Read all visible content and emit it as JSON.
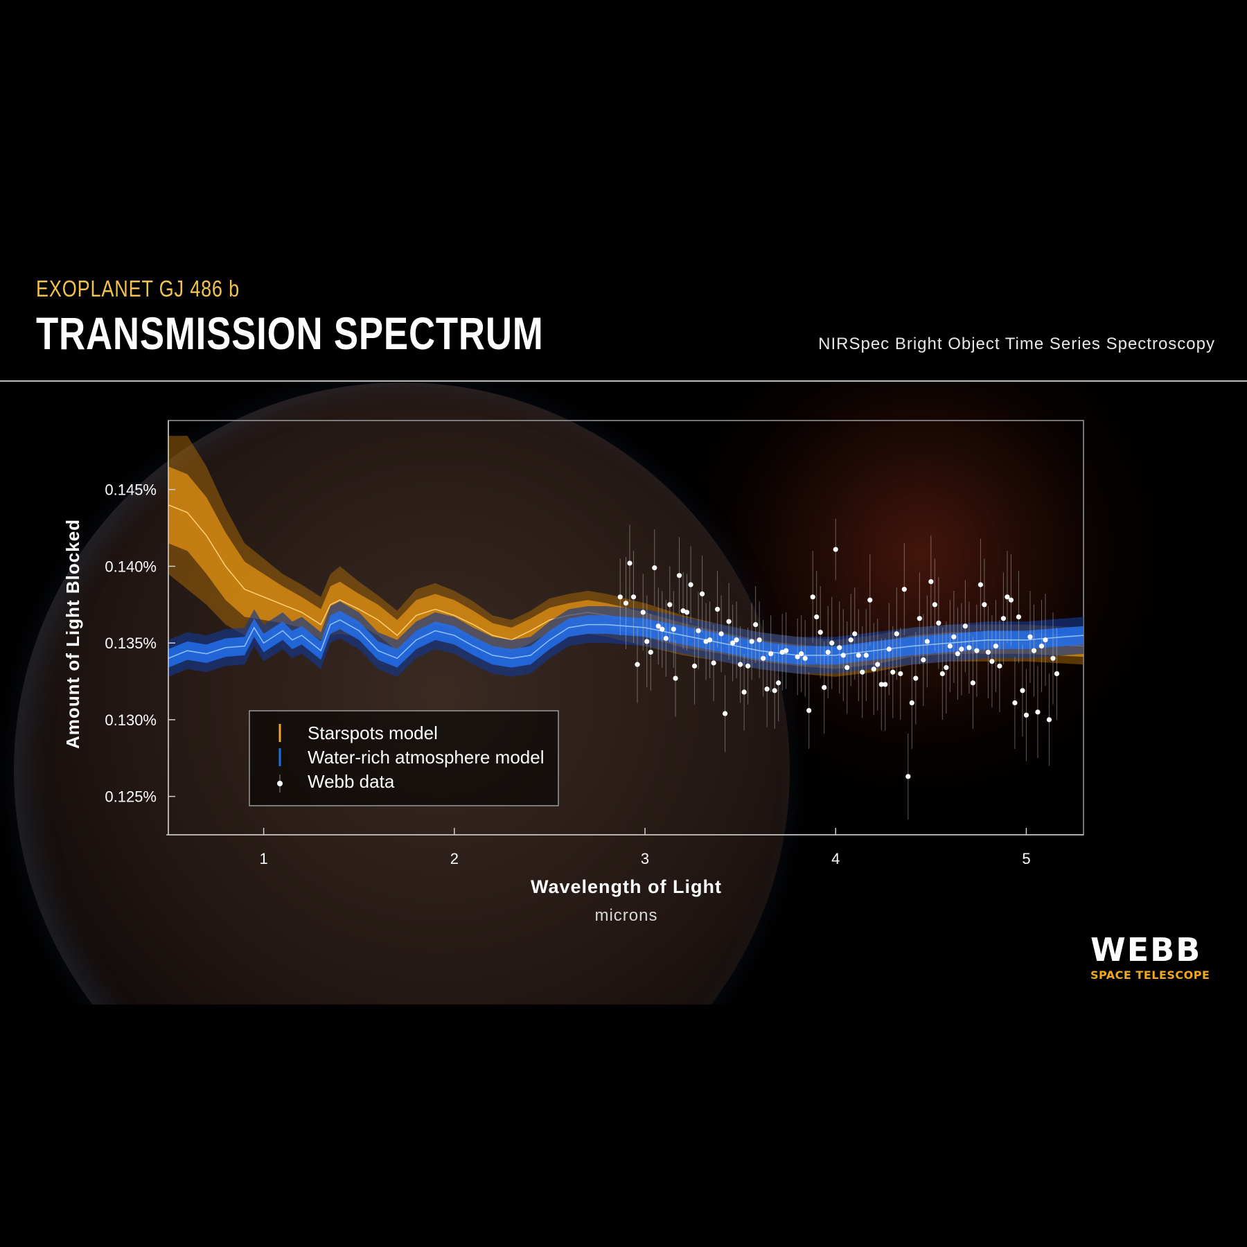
{
  "header": {
    "subtitle": "EXOPLANET GJ 486 b",
    "title": "TRANSMISSION SPECTRUM",
    "instrument": "NIRSpec Bright Object Time Series Spectroscopy"
  },
  "logo": {
    "name": "WEBB",
    "tagline": "SPACE TELESCOPE"
  },
  "colors": {
    "starspots": "#f0a81c",
    "water": "#1f6fe8",
    "data": "#ffffff",
    "background": "#000000"
  },
  "chart_data": {
    "type": "line",
    "xlabel": "Wavelength of Light",
    "xunit": "microns",
    "ylabel": "Amount of Light Blocked",
    "xlim": [
      0.5,
      5.3
    ],
    "ylim": [
      0.1225,
      0.1495
    ],
    "xticks": [
      1,
      2,
      3,
      4,
      5
    ],
    "xtick_labels": [
      "1",
      "2",
      "3",
      "4",
      "5"
    ],
    "yticks": [
      0.125,
      0.13,
      0.135,
      0.14,
      0.145
    ],
    "ytick_labels": [
      "0.125%",
      "0.130%",
      "0.135%",
      "0.140%",
      "0.145%"
    ],
    "legend": {
      "position": "lower-left",
      "entries": [
        "Starspots model",
        "Water-rich atmosphere model",
        "Webb data"
      ]
    },
    "series": [
      {
        "name": "Starspots model",
        "x": [
          0.5,
          0.6,
          0.7,
          0.8,
          0.9,
          1.0,
          1.1,
          1.2,
          1.3,
          1.35,
          1.4,
          1.5,
          1.6,
          1.7,
          1.8,
          1.9,
          2.0,
          2.1,
          2.2,
          2.3,
          2.4,
          2.5,
          2.6,
          2.7,
          2.8,
          3.0,
          3.2,
          3.4,
          3.6,
          3.8,
          4.0,
          4.2,
          4.4,
          4.6,
          4.8,
          5.0,
          5.3
        ],
        "y": [
          0.144,
          0.1435,
          0.142,
          0.14,
          0.1385,
          0.138,
          0.1375,
          0.137,
          0.1362,
          0.1375,
          0.1378,
          0.1372,
          0.1365,
          0.1355,
          0.1368,
          0.1372,
          0.1368,
          0.1362,
          0.1355,
          0.1352,
          0.1358,
          0.1365,
          0.1368,
          0.137,
          0.1368,
          0.1362,
          0.1355,
          0.135,
          0.1345,
          0.1342,
          0.134,
          0.1343,
          0.1348,
          0.135,
          0.135,
          0.135,
          0.1348
        ],
        "y_inner": [
          0.0025,
          0.0025,
          0.0025,
          0.0022,
          0.0018,
          0.0015,
          0.0012,
          0.001,
          0.001,
          0.0012,
          0.0012,
          0.001,
          0.001,
          0.001,
          0.001,
          0.001,
          0.001,
          0.0009,
          0.0008,
          0.0008,
          0.0008,
          0.0008,
          0.0008,
          0.0008,
          0.0008,
          0.0008,
          0.0008,
          0.0007,
          0.0007,
          0.0007,
          0.0007,
          0.0007,
          0.0007,
          0.0007,
          0.0007,
          0.0007,
          0.0007
        ],
        "y_outer": [
          0.0045,
          0.005,
          0.0045,
          0.0038,
          0.003,
          0.0025,
          0.002,
          0.0018,
          0.0018,
          0.002,
          0.0022,
          0.0018,
          0.0016,
          0.0016,
          0.0017,
          0.0017,
          0.0016,
          0.0015,
          0.0013,
          0.0013,
          0.0013,
          0.0014,
          0.0014,
          0.0014,
          0.0014,
          0.0014,
          0.0013,
          0.0012,
          0.0012,
          0.0012,
          0.0012,
          0.0012,
          0.0012,
          0.0012,
          0.0012,
          0.0012,
          0.0012
        ]
      },
      {
        "name": "Water-rich atmosphere model",
        "x": [
          0.5,
          0.6,
          0.7,
          0.8,
          0.9,
          0.95,
          1.0,
          1.1,
          1.15,
          1.2,
          1.3,
          1.35,
          1.4,
          1.5,
          1.6,
          1.7,
          1.8,
          1.9,
          2.0,
          2.1,
          2.2,
          2.3,
          2.4,
          2.5,
          2.6,
          2.7,
          2.8,
          3.0,
          3.2,
          3.4,
          3.6,
          3.8,
          4.0,
          4.2,
          4.4,
          4.6,
          4.8,
          5.0,
          5.3
        ],
        "y": [
          0.134,
          0.1345,
          0.1343,
          0.1347,
          0.1348,
          0.136,
          0.135,
          0.1358,
          0.1352,
          0.1355,
          0.1345,
          0.1362,
          0.1365,
          0.1358,
          0.1345,
          0.134,
          0.1352,
          0.1358,
          0.1355,
          0.1348,
          0.1342,
          0.134,
          0.1342,
          0.1352,
          0.136,
          0.1362,
          0.1362,
          0.136,
          0.1355,
          0.135,
          0.1345,
          0.1342,
          0.1342,
          0.1345,
          0.1348,
          0.135,
          0.1352,
          0.1352,
          0.1355
        ],
        "y_inner": [
          0.0006,
          0.0006,
          0.0006,
          0.0006,
          0.0006,
          0.0006,
          0.0006,
          0.0006,
          0.0006,
          0.0006,
          0.0006,
          0.0006,
          0.0006,
          0.0006,
          0.0006,
          0.0006,
          0.0006,
          0.0006,
          0.0006,
          0.0006,
          0.0006,
          0.0006,
          0.0006,
          0.0006,
          0.0006,
          0.0006,
          0.0006,
          0.0006,
          0.0006,
          0.0006,
          0.0006,
          0.0006,
          0.0006,
          0.0006,
          0.0006,
          0.0006,
          0.0006,
          0.0006,
          0.0006
        ],
        "y_outer": [
          0.0012,
          0.0012,
          0.0012,
          0.0012,
          0.0012,
          0.0012,
          0.0012,
          0.0012,
          0.0012,
          0.0012,
          0.0012,
          0.0012,
          0.0012,
          0.0012,
          0.0012,
          0.0012,
          0.0012,
          0.0012,
          0.0012,
          0.0012,
          0.0012,
          0.0012,
          0.0012,
          0.0012,
          0.0012,
          0.0012,
          0.0012,
          0.0012,
          0.0012,
          0.0012,
          0.0012,
          0.0012,
          0.0012,
          0.0012,
          0.0012,
          0.0012,
          0.0012,
          0.0012,
          0.0012
        ]
      }
    ],
    "points": {
      "name": "Webb data",
      "x": [
        2.87,
        2.9,
        2.92,
        2.94,
        2.96,
        2.99,
        3.01,
        3.03,
        3.05,
        3.07,
        3.09,
        3.11,
        3.13,
        3.15,
        3.16,
        3.18,
        3.2,
        3.22,
        3.24,
        3.26,
        3.28,
        3.3,
        3.32,
        3.34,
        3.36,
        3.38,
        3.4,
        3.42,
        3.44,
        3.46,
        3.48,
        3.5,
        3.52,
        3.54,
        3.56,
        3.58,
        3.6,
        3.62,
        3.64,
        3.66,
        3.68,
        3.7,
        3.72,
        3.74,
        3.8,
        3.82,
        3.84,
        3.86,
        3.88,
        3.9,
        3.92,
        3.94,
        3.96,
        3.98,
        4.0,
        4.02,
        4.04,
        4.06,
        4.08,
        4.1,
        4.12,
        4.14,
        4.16,
        4.18,
        4.2,
        4.22,
        4.24,
        4.26,
        4.28,
        4.3,
        4.32,
        4.34,
        4.36,
        4.38,
        4.4,
        4.42,
        4.44,
        4.46,
        4.48,
        4.5,
        4.52,
        4.54,
        4.56,
        4.58,
        4.6,
        4.62,
        4.64,
        4.66,
        4.68,
        4.7,
        4.72,
        4.74,
        4.76,
        4.78,
        4.8,
        4.82,
        4.84,
        4.86,
        4.88,
        4.9,
        4.92,
        4.94,
        4.96,
        4.98,
        5.0,
        5.02,
        5.04,
        5.06,
        5.08,
        5.1,
        5.12,
        5.14,
        5.16
      ],
      "y": [
        0.138,
        0.1376,
        0.1402,
        0.138,
        0.1336,
        0.137,
        0.1351,
        0.1344,
        0.1399,
        0.1361,
        0.1359,
        0.1353,
        0.1375,
        0.1359,
        0.1327,
        0.1394,
        0.1371,
        0.137,
        0.1388,
        0.1335,
        0.1358,
        0.1382,
        0.1351,
        0.1352,
        0.1337,
        0.1372,
        0.1356,
        0.1304,
        0.1364,
        0.135,
        0.1352,
        0.1336,
        0.1318,
        0.1335,
        0.1351,
        0.1362,
        0.1352,
        0.134,
        0.132,
        0.1343,
        0.1319,
        0.1324,
        0.1344,
        0.1345,
        0.1341,
        0.1343,
        0.134,
        0.1306,
        0.138,
        0.1367,
        0.1357,
        0.1321,
        0.1344,
        0.135,
        0.1411,
        0.1347,
        0.1342,
        0.1334,
        0.1352,
        0.1356,
        0.1342,
        0.1331,
        0.1342,
        0.1378,
        0.1333,
        0.1336,
        0.1323,
        0.1323,
        0.1346,
        0.1331,
        0.1356,
        0.133,
        0.1385,
        0.1263,
        0.1311,
        0.1327,
        0.1366,
        0.1339,
        0.1351,
        0.139,
        0.1375,
        0.1363,
        0.133,
        0.1334,
        0.1348,
        0.1354,
        0.1343,
        0.1346,
        0.1361,
        0.1347,
        0.1324,
        0.1345,
        0.1388,
        0.1375,
        0.1344,
        0.1338,
        0.1348,
        0.1335,
        0.1366,
        0.138,
        0.1378,
        0.1311,
        0.1367,
        0.1319,
        0.1303,
        0.1354,
        0.1345,
        0.1305,
        0.1348,
        0.1352,
        0.13,
        0.134,
        0.133
      ],
      "err": [
        0.0025,
        0.003,
        0.0025,
        0.003,
        0.0025,
        0.0025,
        0.003,
        0.0025,
        0.0025,
        0.0025,
        0.0025,
        0.0025,
        0.0025,
        0.0025,
        0.0025,
        0.0025,
        0.0025,
        0.0025,
        0.0025,
        0.0025,
        0.0025,
        0.0025,
        0.0025,
        0.0025,
        0.0025,
        0.0025,
        0.0025,
        0.0025,
        0.0025,
        0.0025,
        0.0025,
        0.0025,
        0.0025,
        0.0025,
        0.0025,
        0.0025,
        0.0025,
        0.0025,
        0.0025,
        0.0025,
        0.0025,
        0.0025,
        0.0025,
        0.0025,
        0.0025,
        0.0025,
        0.0025,
        0.0025,
        0.003,
        0.003,
        0.003,
        0.003,
        0.003,
        0.003,
        0.002,
        0.003,
        0.003,
        0.003,
        0.003,
        0.003,
        0.003,
        0.003,
        0.003,
        0.003,
        0.003,
        0.003,
        0.003,
        0.003,
        0.003,
        0.003,
        0.003,
        0.003,
        0.003,
        0.0028,
        0.003,
        0.003,
        0.003,
        0.003,
        0.003,
        0.003,
        0.003,
        0.003,
        0.003,
        0.003,
        0.003,
        0.003,
        0.003,
        0.003,
        0.003,
        0.003,
        0.003,
        0.003,
        0.003,
        0.003,
        0.003,
        0.003,
        0.003,
        0.003,
        0.003,
        0.003,
        0.003,
        0.003,
        0.003,
        0.003,
        0.003,
        0.003,
        0.003,
        0.003,
        0.003,
        0.003,
        0.003,
        0.003,
        0.003
      ]
    }
  }
}
